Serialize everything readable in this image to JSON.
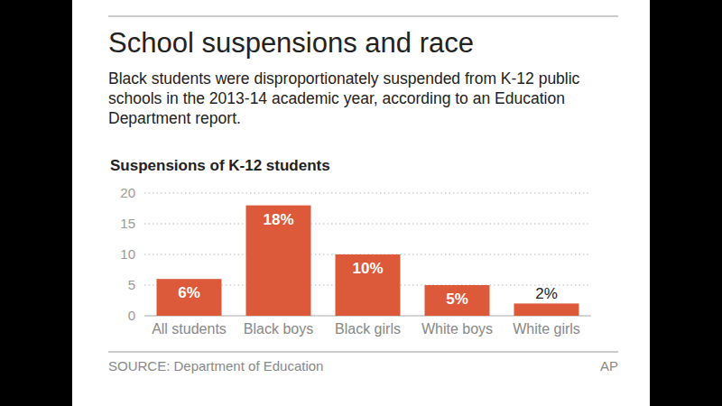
{
  "title": "School suspensions and race",
  "subtitle": "Black students were disproportionately suspended from K-12 public schools in the 2013-14 academic year, according to an Education Department report.",
  "chart_data": {
    "type": "bar",
    "title": "Suspensions of K-12 students",
    "categories": [
      "All students",
      "Black boys",
      "Black girls",
      "White boys",
      "White girls"
    ],
    "values": [
      6,
      18,
      10,
      5,
      2
    ],
    "value_labels": [
      "6%",
      "18%",
      "10%",
      "5%",
      "2%"
    ],
    "color": "#dc5a3a",
    "ylim": [
      0,
      20
    ],
    "yticks": [
      0,
      5,
      10,
      15,
      20
    ],
    "grid": true,
    "data_labels": true
  },
  "source": "SOURCE: Department of Education",
  "credit": "AP"
}
